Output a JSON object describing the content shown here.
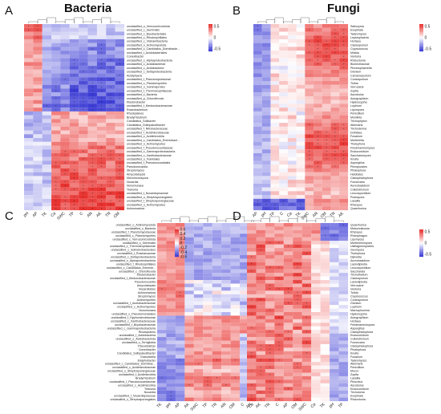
{
  "titles": {
    "bacteria": "Bacteria",
    "fungi": "Fungi"
  },
  "colors": {
    "low": "#3b3bd6",
    "mid": "#ffffff",
    "high": "#e8312e",
    "low2": "#3636c8",
    "high2": "#e03a33"
  },
  "chart_data": [
    {
      "type": "heatmap",
      "panel": "A",
      "title": "Bacteria",
      "columns": [
        "pH",
        "AP",
        "TK",
        "Ca",
        "SWC",
        "TP",
        "C",
        "AN",
        "AK",
        "TN",
        "OM"
      ],
      "rows": [
        "unclassified_o_Verrucomicrobiota",
        "unclassified_c_Gemmatis",
        "unclassified_c_Bryobacteriales",
        "unclassified_c_Rhodospirillales",
        "unclassified_c_Vicinamibacteria",
        "unclassified_o_Actinomycetota",
        "unclassified_c_Candidatus_Dormibacte...",
        "unclassified_f_Acidobacteriales",
        "Conexibacter",
        "unclassified_c_Alphaproteobacteria",
        "unclassified_c_Acidobacteriae",
        "unclassified_c_Acidobacteria",
        "unclassified_c_Deltaproteobacteria",
        "Acidiphaera",
        "unclassified_f_Planctomycetaceae",
        "unclassified_c_Planctomycetes",
        "unclassified_o_Gammaproteo",
        "unclassified_f_Thermoleophilaceae",
        "unclassified_c_Bacteria",
        "unclassified_p_Chloroflexota",
        "Ktedonobacter",
        "unclassified_f_Ktedonobacteraceae",
        "Roseobacterium",
        "Rhodoplanes",
        "Bradyrhizobium",
        "Candidatus_Solibacter",
        "Candidatus_Sulfopaludibacter",
        "unclassified_f_Nitrobacteraceae",
        "unclassified_f_Acidimicrobiaceae",
        "unclassified_c_Acidimicrobiia",
        "unclassified_c_Candidatus_Eremiobact...",
        "unclassified_o_Actinomycetes",
        "unclassified_f_Pseudonocardiaceae",
        "unclassified_c_Gammaproteobacteria",
        "unclassified_c_Xanthobacteraceae",
        "unclassified_o_Frankiales",
        "unclassified_f_Pseudonocardiales",
        "Pseudonocardia",
        "Streptomyces",
        "Amycolatopsis",
        "Micromonospora",
        "Nocardia",
        "Nonomuraea",
        "Trebonia",
        "unclassified_f_Nocardiopsaceae",
        "unclassified_o_Streptosporangiales",
        "unclassified_f_Streptosporangiaceae",
        "unclassified_o_Actinomycetes",
        "Actinomadura"
      ],
      "legend_ticks": [
        0.5,
        0,
        -0.5
      ],
      "value_range": [
        -0.6,
        0.6
      ]
    },
    {
      "type": "heatmap",
      "panel": "B",
      "title": "Fungi",
      "columns": [
        "AP",
        "pH",
        "TP",
        "C",
        "Ca",
        "TK",
        "SWC",
        "AN",
        "OM",
        "TN",
        "AK"
      ],
      "rows": [
        "Saitozyma",
        "Exophiala",
        "Talaromyces",
        "Leptosphaeria",
        "Hortaea",
        "Cladosporium",
        "Cryptococcus",
        "Mrakia",
        "Venturia",
        "Rhizoctonia",
        "Bionectriaceae",
        "Plectosphaerella",
        "Glonium",
        "Camarosporium",
        "Coniosporium",
        "Tothia",
        "Verrucaria",
        "Zopfia",
        "Ascobolus",
        "Autographium",
        "Hyaloscypha",
        "Lophium",
        "Lipomyces",
        "Penicillium",
        "Monilinia",
        "Trichophyton",
        "Alternaria",
        "Trichoderma",
        "Dothidea",
        "Fusarium",
        "Mortierella",
        "Thelephora",
        "Friedmanniomyces",
        "Endoconidium",
        "Saccharomyces",
        "Knufia",
        "Aspergillus",
        "Pleosporales",
        "Phialophora",
        "Helotiales",
        "Cladophialophora",
        "Fonsecaea",
        "Aureobasidium",
        "Colletotrichum",
        "Leucosporidium",
        "Podospora",
        "Lasallia",
        "Rhizopus",
        "Quaerhoriza"
      ],
      "legend_ticks": [
        0.5,
        0,
        -0.5
      ],
      "value_range": [
        -0.6,
        0.6
      ]
    },
    {
      "type": "heatmap",
      "panel": "C",
      "columns": [
        "TK",
        "pH",
        "AP",
        "AK",
        "SWC",
        "TP",
        "TN",
        "AN",
        "OM",
        "C",
        "Ca"
      ],
      "rows": [
        "unclassified_o_Actinomycetota",
        "unclassified_c_Bacteria",
        "unclassified_f_Planctomycetaceae",
        "unclassified_c_Planctomycetes",
        "unclassified_c_Verrucomicrobiota",
        "unclassified_o_Gemmatis",
        "unclassified_c_Thermoleophilaceae",
        "unclassified_c_Solirubrobacterales",
        "unclassified_f_Roseiarcaceae",
        "unclassified_c_Deltaproteobacteria",
        "unclassified_c_Alphaproteobacteria",
        "unclassified_f_Rhodospirillales",
        "unclassified_c_Candidatus_Eremiob...",
        "unclassified_c_Chloroflexota",
        "Ktedonobacter",
        "unclassified_f_Ktedonobacteraceae",
        "Pseudonocardia",
        "Amycolatopsis",
        "Nocardioides",
        "Actinomadura",
        "Streptomyces",
        "Actinomycetes",
        "unclassified_f_Acetobacteraceae",
        "unclassified_c_Actinomycetes",
        "Nonomuraea",
        "unclassified_o_Pseudomonadales",
        "unclassified_f_Hyphomicrobiaceae",
        "unclassified_c_Xanthobacteraceae",
        "unclassified_f_Bryobacteraceae",
        "unclassified_c_Gammaproteobacteria",
        "Rhodoplanes",
        "unclassified_f_Acidobacteria",
        "unclassified_o_Acidobacteriota",
        "unclassified_c_Terrigliobia",
        "Pseudolabrys",
        "Conexibacter",
        "Candidatus_Sulfopaludibacter",
        "Granulicella",
        "Edaphobacter",
        "unclassified_c_Candidatus_Dormibac...",
        "unclassified_c_Acidimicrobiaceae",
        "unclassified_o_Streptosporangiaceae",
        "unclassified_f_Acidimicrobiia",
        "Bradyrhizobium",
        "unclassified_f_Pseudonocardiaceae",
        "unclassified_c_Acidimicrobiia",
        "Trebonia",
        "Nocardia",
        "unclassified_f_Nocardiopsaceae",
        "unclassified_c_Streptosporangiales"
      ],
      "legend_ticks": [
        0.6,
        0.4,
        0.2,
        0,
        -0.2,
        -0.4,
        -0.6
      ],
      "value_range": [
        -0.6,
        0.6
      ]
    },
    {
      "type": "heatmap",
      "panel": "D",
      "columns": [
        "AN",
        "AK",
        "TN",
        "C",
        "AP",
        "OM",
        "SWC",
        "Ca",
        "TK",
        "pH",
        "TP"
      ],
      "rows": [
        "Quaerhoriza",
        "Metschnikowia",
        "Rhizopus",
        "Rhizophagus",
        "Lipomyces",
        "Mortierellomyces",
        "Ustilaginomycetes",
        "Geomyces",
        "Thelephora",
        "Diploidia",
        "Aureobasidium",
        "Lasiodiplodia",
        "Leucosporidium",
        "Saccharata",
        "Trichothelium",
        "Cladosporium",
        "Lasiodiplodia",
        "Verrucaria",
        "Venturia",
        "Tothia",
        "Cryptococcus",
        "Coniosporium",
        "Glonium",
        "Lophium",
        "Macrophomina",
        "Hyaloscypha",
        "Autographium",
        "Hortaea",
        "Friedmanniomyces",
        "Aspergillus",
        "Cladophialophora",
        "Endoconidium",
        "Colletotrichum",
        "Fonsecaea",
        "Cladophialophora",
        "Phialophora",
        "Knufia",
        "Fusarium",
        "Talaromyces",
        "Alternaria",
        "Penicillium",
        "Mucor",
        "Zopfia",
        "Lasallia",
        "Pleurotus",
        "Ascobolus",
        "Endoconidium",
        "Tricholoma",
        "Exophiala",
        "Rhizoctonia"
      ],
      "legend_ticks": [
        0.5,
        0,
        -0.5
      ],
      "value_range": [
        -0.6,
        0.6
      ]
    }
  ]
}
